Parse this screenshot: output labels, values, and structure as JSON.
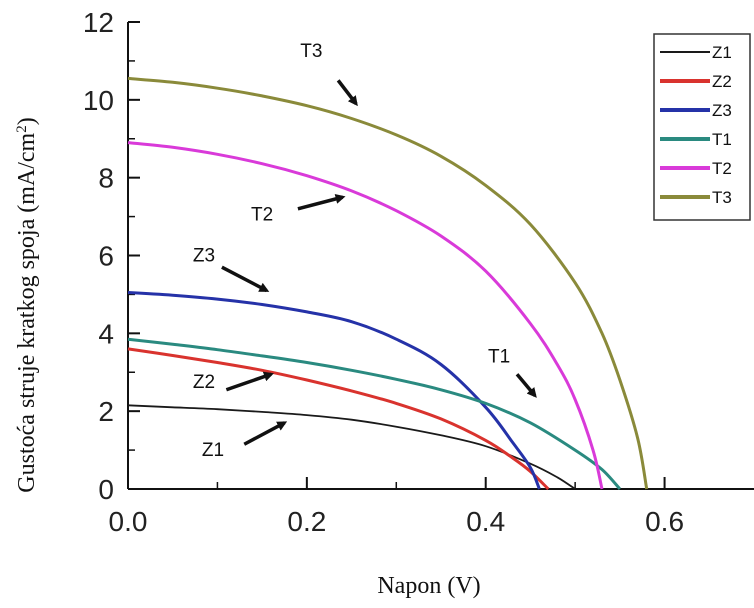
{
  "chart_data": {
    "type": "line",
    "xlabel": "Napon (V)",
    "ylabel_main": "Gustoća struje kratkog spoja (mA/cm",
    "ylabel_sup": "2",
    "ylabel_end": ")",
    "xlim": [
      0.0,
      0.7
    ],
    "ylim": [
      0,
      12
    ],
    "x_ticks": [
      0.0,
      0.2,
      0.4,
      0.6
    ],
    "x_tick_labels": [
      "0.0",
      "0.2",
      "0.4",
      "0.6"
    ],
    "y_ticks": [
      0,
      2,
      4,
      6,
      8,
      10,
      12
    ],
    "y_tick_labels": [
      "0",
      "2",
      "4",
      "6",
      "8",
      "10",
      "12"
    ],
    "grid": false,
    "legend_position": "top-right",
    "series": [
      {
        "name": "Z1",
        "color": "#1a1a1a",
        "x": [
          0.0,
          0.05,
          0.1,
          0.15,
          0.2,
          0.25,
          0.3,
          0.35,
          0.4,
          0.45,
          0.48,
          0.5
        ],
        "y": [
          2.15,
          2.1,
          2.05,
          1.98,
          1.9,
          1.78,
          1.6,
          1.38,
          1.1,
          0.65,
          0.3,
          0.0
        ]
      },
      {
        "name": "Z2",
        "color": "#d9332e",
        "x": [
          0.0,
          0.05,
          0.1,
          0.15,
          0.2,
          0.25,
          0.3,
          0.35,
          0.4,
          0.43,
          0.45,
          0.47
        ],
        "y": [
          3.6,
          3.43,
          3.25,
          3.05,
          2.8,
          2.52,
          2.2,
          1.8,
          1.25,
          0.8,
          0.45,
          0.0
        ]
      },
      {
        "name": "Z3",
        "color": "#2532a8",
        "x": [
          0.0,
          0.05,
          0.1,
          0.15,
          0.2,
          0.25,
          0.3,
          0.35,
          0.4,
          0.43,
          0.45,
          0.46
        ],
        "y": [
          5.05,
          4.98,
          4.88,
          4.74,
          4.55,
          4.3,
          3.85,
          3.2,
          2.1,
          1.2,
          0.55,
          0.0
        ]
      },
      {
        "name": "T1",
        "color": "#2a8a80",
        "x": [
          0.0,
          0.05,
          0.1,
          0.15,
          0.2,
          0.25,
          0.3,
          0.35,
          0.4,
          0.45,
          0.5,
          0.53,
          0.55
        ],
        "y": [
          3.85,
          3.72,
          3.58,
          3.42,
          3.25,
          3.05,
          2.82,
          2.55,
          2.2,
          1.7,
          1.0,
          0.5,
          0.0
        ]
      },
      {
        "name": "T2",
        "color": "#d93ad9",
        "x": [
          0.0,
          0.05,
          0.1,
          0.15,
          0.2,
          0.25,
          0.3,
          0.35,
          0.4,
          0.45,
          0.48,
          0.5,
          0.52,
          0.53
        ],
        "y": [
          8.9,
          8.78,
          8.6,
          8.36,
          8.05,
          7.66,
          7.15,
          6.5,
          5.6,
          4.25,
          3.2,
          2.3,
          1.0,
          0.0
        ]
      },
      {
        "name": "T3",
        "color": "#8a8a3a",
        "x": [
          0.0,
          0.05,
          0.1,
          0.15,
          0.2,
          0.25,
          0.3,
          0.35,
          0.4,
          0.45,
          0.5,
          0.53,
          0.55,
          0.57,
          0.58
        ],
        "y": [
          10.55,
          10.45,
          10.3,
          10.1,
          9.85,
          9.52,
          9.1,
          8.55,
          7.8,
          6.8,
          5.3,
          4.0,
          2.8,
          1.3,
          0.0
        ]
      }
    ],
    "annotations": [
      {
        "label": "T3",
        "text_x": 0.205,
        "text_y": 11.1,
        "arrow_from": [
          0.235,
          10.5
        ],
        "arrow_to": [
          0.255,
          9.9
        ]
      },
      {
        "label": "T2",
        "text_x": 0.15,
        "text_y": 6.9,
        "arrow_from": [
          0.19,
          7.2
        ],
        "arrow_to": [
          0.24,
          7.5
        ]
      },
      {
        "label": "Z3",
        "text_x": 0.085,
        "text_y": 5.85,
        "arrow_from": [
          0.105,
          5.7
        ],
        "arrow_to": [
          0.155,
          5.1
        ]
      },
      {
        "label": "Z2",
        "text_x": 0.085,
        "text_y": 2.6,
        "arrow_from": [
          0.11,
          2.55
        ],
        "arrow_to": [
          0.16,
          2.95
        ]
      },
      {
        "label": "T1",
        "text_x": 0.415,
        "text_y": 3.25,
        "arrow_from": [
          0.435,
          2.95
        ],
        "arrow_to": [
          0.455,
          2.4
        ]
      },
      {
        "label": "Z1",
        "text_x": 0.095,
        "text_y": 0.85,
        "arrow_from": [
          0.13,
          1.15
        ],
        "arrow_to": [
          0.175,
          1.7
        ]
      }
    ]
  }
}
